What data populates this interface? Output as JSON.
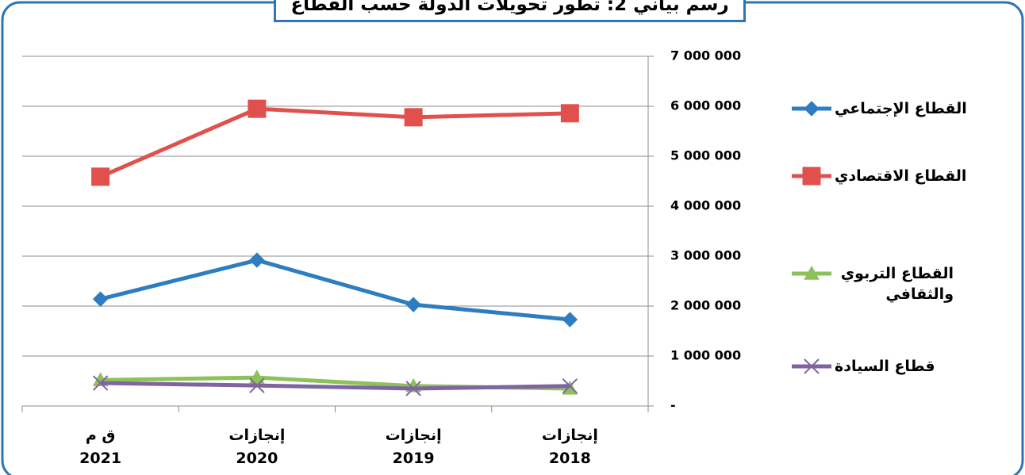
{
  "chart_data": {
    "type": "line",
    "title": "رسم بياني 2: تطور تحويلات الدولة حسب القطاع",
    "categories": [
      "ق م\n2021",
      "إنجازات\n2020",
      "إنجازات\n2019",
      "إنجازات\n2018"
    ],
    "series": [
      {
        "name": "القطاع الإجتماعي",
        "color": "#2e7dbf",
        "marker": "diamond",
        "values": [
          2140000,
          2920000,
          2030000,
          1730000
        ]
      },
      {
        "name": "القطاع الاقتصادي",
        "color": "#e0504d",
        "marker": "square",
        "values": [
          4590000,
          5950000,
          5780000,
          5860000
        ]
      },
      {
        "name": "القطاع التربوي والثقافي",
        "color": "#8dc15a",
        "marker": "triangle",
        "values": [
          520000,
          570000,
          400000,
          350000
        ]
      },
      {
        "name": "قطاع السيادة",
        "color": "#8064a2",
        "marker": "x",
        "values": [
          460000,
          410000,
          350000,
          400000
        ]
      }
    ],
    "ylim": [
      0,
      7000000
    ],
    "yticks": [
      {
        "value": 0,
        "label": "-"
      },
      {
        "value": 1000000,
        "label": "1 000 000"
      },
      {
        "value": 2000000,
        "label": "2 000 000"
      },
      {
        "value": 3000000,
        "label": "3 000 000"
      },
      {
        "value": 4000000,
        "label": "4 000 000"
      },
      {
        "value": 5000000,
        "label": "5 000 000"
      },
      {
        "value": 6000000,
        "label": "6 000 000"
      },
      {
        "value": 7000000,
        "label": "7 000 000"
      }
    ],
    "grid": true,
    "legend": "right"
  }
}
